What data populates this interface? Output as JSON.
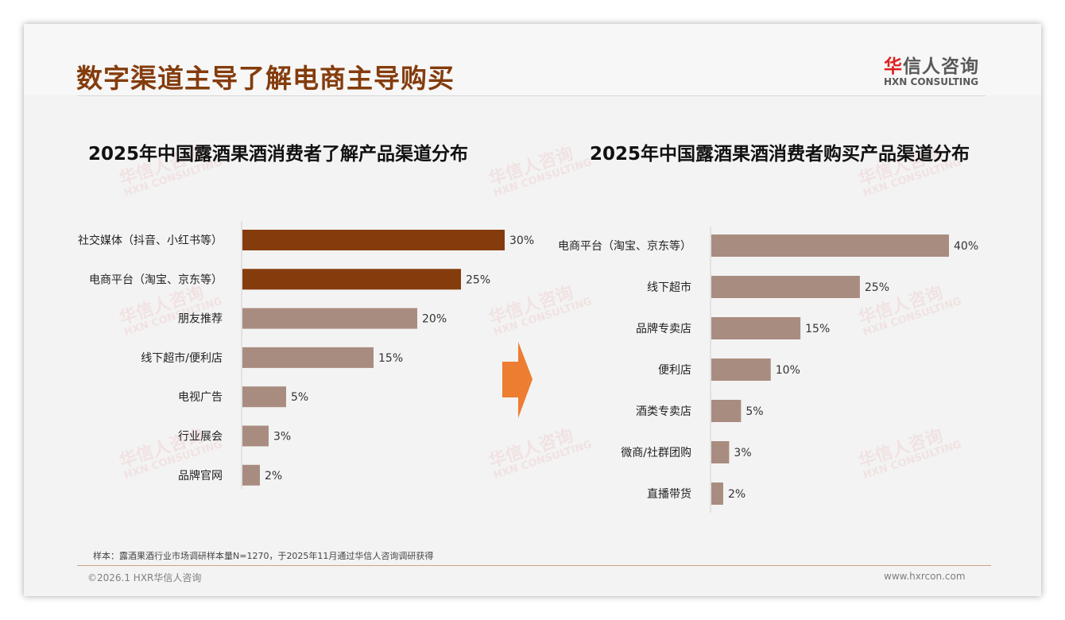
{
  "header": {
    "title": "数字渠道主导了解电商主导购买",
    "logo_cn_accent": "华",
    "logo_cn_rest": "信人咨询",
    "logo_en": "HXN CONSULTING"
  },
  "watermark": {
    "cn": "华信人咨询",
    "en": "HXN CONSULTING"
  },
  "colors": {
    "dark": "#843c0c",
    "light": "#a98c80",
    "arrow": "#ed7d31"
  },
  "chart_data": [
    {
      "type": "bar",
      "orientation": "horizontal",
      "title": "2025年中国露酒果酒消费者了解产品渠道分布",
      "categories": [
        "社交媒体（抖音、小红书等）",
        "电商平台（淘宝、京东等）",
        "朋友推荐",
        "线下超市/便利店",
        "电视广告",
        "行业展会",
        "品牌官网"
      ],
      "values": [
        30,
        25,
        20,
        15,
        5,
        3,
        2
      ],
      "labels": [
        "30%",
        "25%",
        "20%",
        "15%",
        "5%",
        "3%",
        "2%"
      ],
      "highlight": [
        true,
        true,
        false,
        false,
        false,
        false,
        false
      ],
      "unit": "%",
      "xlim": [
        0,
        30
      ]
    },
    {
      "type": "bar",
      "orientation": "horizontal",
      "title": "2025年中国露酒果酒消费者购买产品渠道分布",
      "categories": [
        "电商平台（淘宝、京东等）",
        "线下超市",
        "品牌专卖店",
        "便利店",
        "酒类专卖店",
        "微商/社群团购",
        "直播带货"
      ],
      "values": [
        40,
        25,
        15,
        10,
        5,
        3,
        2
      ],
      "labels": [
        "40%",
        "25%",
        "15%",
        "10%",
        "5%",
        "3%",
        "2%"
      ],
      "highlight": [
        false,
        false,
        false,
        false,
        false,
        false,
        false
      ],
      "unit": "%",
      "xlim": [
        0,
        40
      ]
    }
  ],
  "footer": {
    "note": "样本：露酒果酒行业市场调研样本量N=1270，于2025年11月通过华信人咨询调研获得",
    "copyright": "©2026.1 HXR华信人咨询",
    "website": "www.hxrcon.com"
  }
}
